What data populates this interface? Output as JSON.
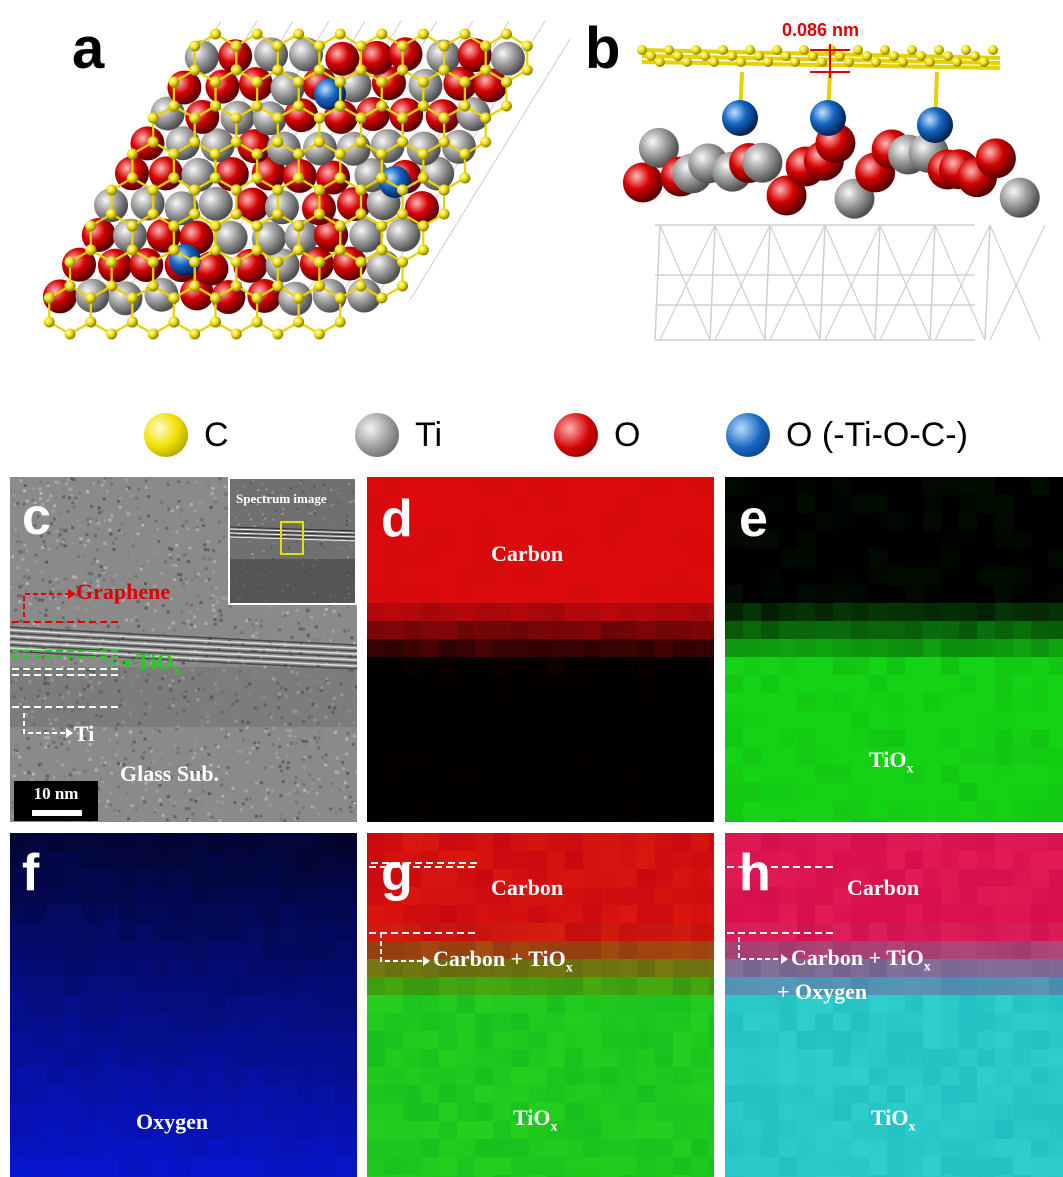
{
  "panels": {
    "a": {
      "letter": "a"
    },
    "b": {
      "letter": "b",
      "measurement": "0.086 nm"
    },
    "c": {
      "letter": "c",
      "inset_title": "Spectrum image",
      "graphene": "Graphene",
      "tiox_main": "TiO",
      "tiox_sub": "x",
      "ti": "Ti",
      "glass": "Glass Sub.",
      "scale": "10 nm"
    },
    "d": {
      "letter": "d",
      "carbon": "Carbon"
    },
    "e": {
      "letter": "e",
      "tiox_main": "TiO",
      "tiox_sub": "x"
    },
    "f": {
      "letter": "f",
      "oxygen": "Oxygen"
    },
    "g": {
      "letter": "g",
      "carbon": "Carbon",
      "mix_main": "Carbon + TiO",
      "mix_sub": "x",
      "tiox_main": "TiO",
      "tiox_sub": "x"
    },
    "h": {
      "letter": "h",
      "carbon": "Carbon",
      "mix_main": "Carbon + TiO",
      "mix_sub": "x",
      "mix_line2": "+ Oxygen",
      "tiox_main": "TiO",
      "tiox_sub": "x"
    }
  },
  "legend": [
    {
      "symbol": "C",
      "color": "#f2e000",
      "icon": "carbon-atom-icon"
    },
    {
      "symbol": "Ti",
      "color": "#9a9a9a",
      "icon": "titanium-atom-icon"
    },
    {
      "symbol": "O",
      "color": "#d40000",
      "icon": "oxygen-atom-icon"
    },
    {
      "symbol": "O (-Ti-O-C-)",
      "color": "#1565c0",
      "icon": "bridging-oxygen-atom-icon"
    }
  ],
  "colors": {
    "carbon_map": "#d40000",
    "tiox_map": "#18c818",
    "oxygen_map": "#0a1fd6",
    "graphene_marker": "#e00000",
    "tiox_marker": "#1ad21a"
  }
}
